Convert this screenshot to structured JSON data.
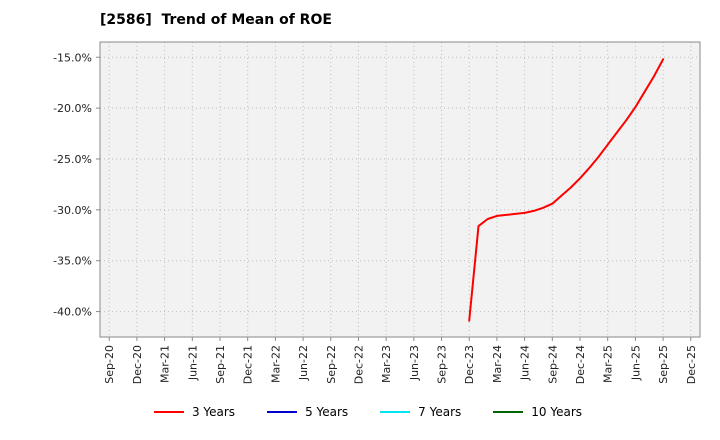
{
  "title": "[2586]  Trend of Mean of ROE",
  "colors": {
    "figure_bg": "#ffffff",
    "plot_bg": "#f2f2f2",
    "grid": "#bdbdbd",
    "spine": "#8a8a8a",
    "tick_label": "#222222"
  },
  "chart_data": {
    "type": "line",
    "title": "[2586]  Trend of Mean of ROE",
    "xlabel": "",
    "ylabel": "",
    "grid": true,
    "grid_style": "dotted",
    "legend_position": "bottom-center",
    "x_axis": {
      "tick_labels": [
        "Sep-20",
        "Dec-20",
        "Mar-21",
        "Jun-21",
        "Sep-21",
        "Dec-21",
        "Mar-22",
        "Jun-22",
        "Sep-22",
        "Dec-22",
        "Mar-23",
        "Jun-23",
        "Sep-23",
        "Dec-23",
        "Mar-24",
        "Jun-24",
        "Sep-24",
        "Dec-24",
        "Mar-25",
        "Jun-25",
        "Sep-25",
        "Dec-25"
      ],
      "months_per_tick": 3,
      "xlim_months": [
        -1,
        64
      ]
    },
    "y_axis": {
      "tick_values": [
        -15,
        -20,
        -25,
        -30,
        -35,
        -40
      ],
      "tick_labels": [
        "-15.0%",
        "-20.0%",
        "-25.0%",
        "-30.0%",
        "-35.0%",
        "-40.0%"
      ],
      "ylim": [
        -42.5,
        -13.5
      ],
      "unit": "percent"
    },
    "series": [
      {
        "name": "3 Years",
        "color": "#ff0000",
        "x_months": [
          39,
          40,
          41,
          42,
          43,
          44,
          45,
          46,
          47,
          48,
          49,
          50,
          51,
          52,
          53,
          54,
          55,
          56,
          57,
          58,
          59,
          60
        ],
        "x_labels": [
          "Dec-23",
          "Jan-24",
          "Feb-24",
          "Mar-24",
          "Apr-24",
          "May-24",
          "Jun-24",
          "Jul-24",
          "Aug-24",
          "Sep-24",
          "Oct-24",
          "Nov-24",
          "Dec-24",
          "Jan-25",
          "Feb-25",
          "Mar-25",
          "Apr-25",
          "May-25",
          "Jun-25",
          "Jul-25",
          "Aug-25",
          "Sep-25"
        ],
        "values": [
          -40.9,
          -31.6,
          -30.9,
          -30.6,
          -30.5,
          -30.4,
          -30.3,
          -30.1,
          -29.8,
          -29.4,
          -28.6,
          -27.8,
          -26.9,
          -25.9,
          -24.8,
          -23.6,
          -22.4,
          -21.2,
          -19.9,
          -18.4,
          -16.9,
          -15.2
        ]
      },
      {
        "name": "5 Years",
        "color": "#0000cc",
        "x_months": [],
        "x_labels": [],
        "values": []
      },
      {
        "name": "7 Years",
        "color": "#00e5ee",
        "x_months": [],
        "x_labels": [],
        "values": []
      },
      {
        "name": "10 Years",
        "color": "#006400",
        "x_months": [],
        "x_labels": [],
        "values": []
      }
    ]
  }
}
